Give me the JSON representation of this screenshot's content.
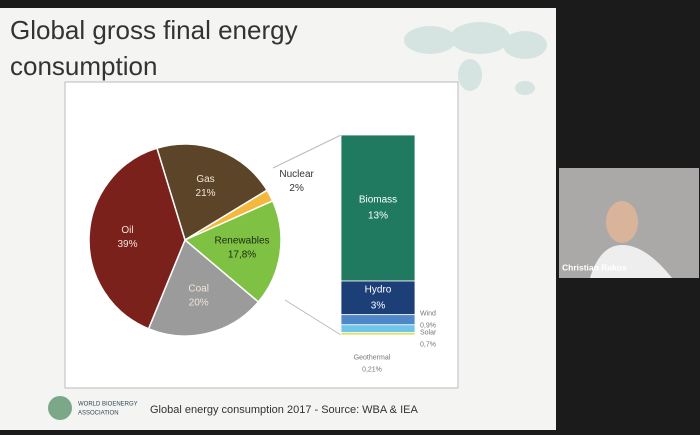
{
  "slide": {
    "title_lines": [
      "Global gross final energy",
      "consumption"
    ],
    "footer": "Global energy consumption 2017 - Source: WBA & IEA",
    "logo_lines": [
      "WORLD BIOENERGY",
      "ASSOCIATION"
    ]
  },
  "participant": {
    "name": "Christian Rakos"
  },
  "chart_data": [
    {
      "type": "pie",
      "categories": [
        "Gas",
        "Nuclear",
        "Renewables",
        "Coal",
        "Oil"
      ],
      "values": [
        21,
        2,
        17.8,
        20,
        39
      ],
      "value_labels": [
        "21%",
        "2%",
        "17,8%",
        "20%",
        "39%"
      ],
      "colors": [
        "#5c4428",
        "#f2b93e",
        "#7fc143",
        "#9b9b9b",
        "#7b211b"
      ]
    },
    {
      "type": "stacked-bar",
      "categories": [
        "Biomass",
        "Hydro",
        "Wind",
        "Solar",
        "Geothermal"
      ],
      "values": [
        13,
        3,
        0.9,
        0.7,
        0.21
      ],
      "value_labels": [
        "13%",
        "3%",
        "0,9%",
        "0,7%",
        "0,21%"
      ],
      "colors": [
        "#1f7a5f",
        "#1d3f78",
        "#4f88c8",
        "#6fc6ea",
        "#e6df4c"
      ]
    }
  ]
}
